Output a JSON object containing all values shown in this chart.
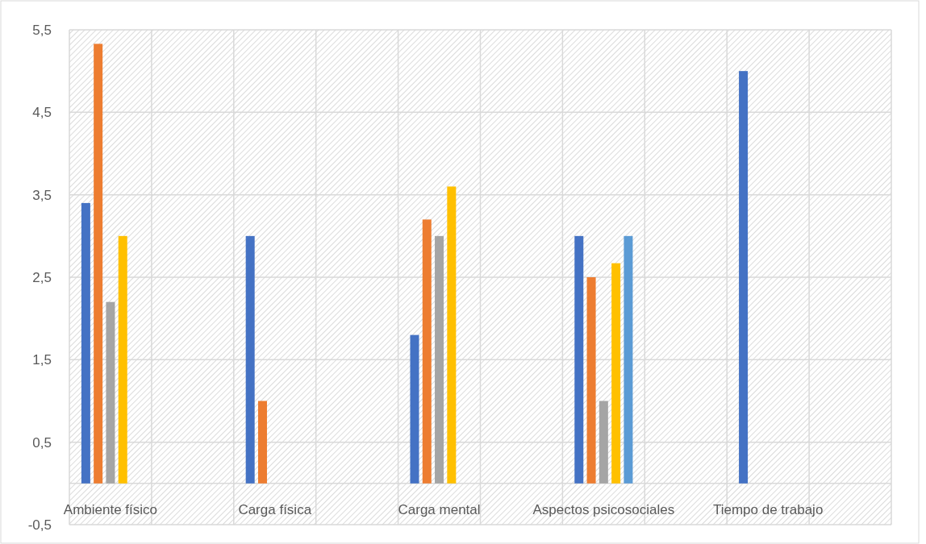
{
  "chart_data": {
    "type": "bar",
    "categories": [
      "Ambiente físico",
      null,
      "Carga física",
      null,
      "Carga mental",
      null,
      "Aspectos psicosociales",
      null,
      "Tiempo de trabajo",
      null
    ],
    "series": [
      {
        "color": "#4472c4",
        "values": [
          3.4,
          null,
          3,
          null,
          1.8,
          null,
          3,
          null,
          5,
          null
        ]
      },
      {
        "color": "#ed7d31",
        "values": [
          5.33,
          null,
          1,
          null,
          3.2,
          null,
          2.5,
          null,
          null,
          null
        ]
      },
      {
        "color": "#a5a5a5",
        "values": [
          2.2,
          null,
          null,
          null,
          3,
          null,
          1,
          null,
          null,
          null
        ]
      },
      {
        "color": "#ffc000",
        "values": [
          3,
          null,
          null,
          null,
          3.6,
          null,
          2.67,
          null,
          null,
          null
        ]
      },
      {
        "color": "#5b9bd5",
        "values": [
          null,
          null,
          null,
          null,
          null,
          null,
          3,
          null,
          null,
          null
        ]
      }
    ],
    "ylim": [
      -0.5,
      5.5
    ],
    "yticks": [
      {
        "value": -0.5,
        "label": "-0,5"
      },
      {
        "value": 0.5,
        "label": "0,5"
      },
      {
        "value": 1.5,
        "label": "1,5"
      },
      {
        "value": 2.5,
        "label": "2,5"
      },
      {
        "value": 3.5,
        "label": "3,5"
      },
      {
        "value": 4.5,
        "label": "4,5"
      },
      {
        "value": 5.5,
        "label": "5,5"
      }
    ],
    "grid": true
  }
}
